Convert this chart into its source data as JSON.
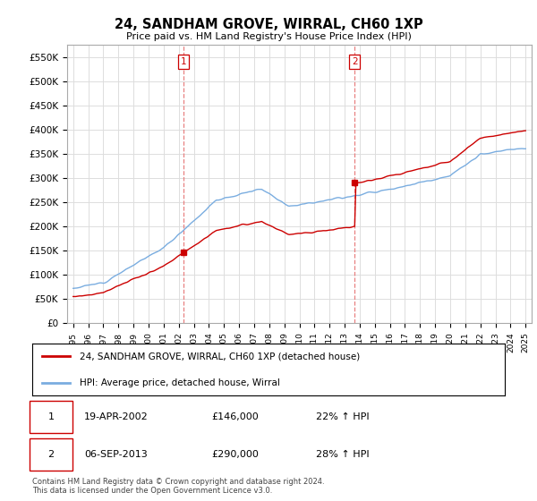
{
  "title": "24, SANDHAM GROVE, WIRRAL, CH60 1XP",
  "subtitle": "Price paid vs. HM Land Registry's House Price Index (HPI)",
  "ylim": [
    0,
    575000
  ],
  "yticks": [
    0,
    50000,
    100000,
    150000,
    200000,
    250000,
    300000,
    350000,
    400000,
    450000,
    500000,
    550000
  ],
  "ytick_labels": [
    "£0",
    "£50K",
    "£100K",
    "£150K",
    "£200K",
    "£250K",
    "£300K",
    "£350K",
    "£400K",
    "£450K",
    "£500K",
    "£550K"
  ],
  "sale1_year": 2002.3,
  "sale1_price": 146000,
  "sale2_year": 2013.67,
  "sale2_price": 290000,
  "line1_color": "#cc0000",
  "line2_color": "#7aade0",
  "vline_color": "#e88080",
  "legend1_text": "24, SANDHAM GROVE, WIRRAL, CH60 1XP (detached house)",
  "legend2_text": "HPI: Average price, detached house, Wirral",
  "table_rows": [
    {
      "num": "1",
      "date": "19-APR-2002",
      "price": "£146,000",
      "change": "22% ↑ HPI"
    },
    {
      "num": "2",
      "date": "06-SEP-2013",
      "price": "£290,000",
      "change": "28% ↑ HPI"
    }
  ],
  "footer": "Contains HM Land Registry data © Crown copyright and database right 2024.\nThis data is licensed under the Open Government Licence v3.0.",
  "background_color": "#ffffff",
  "grid_color": "#dddddd"
}
